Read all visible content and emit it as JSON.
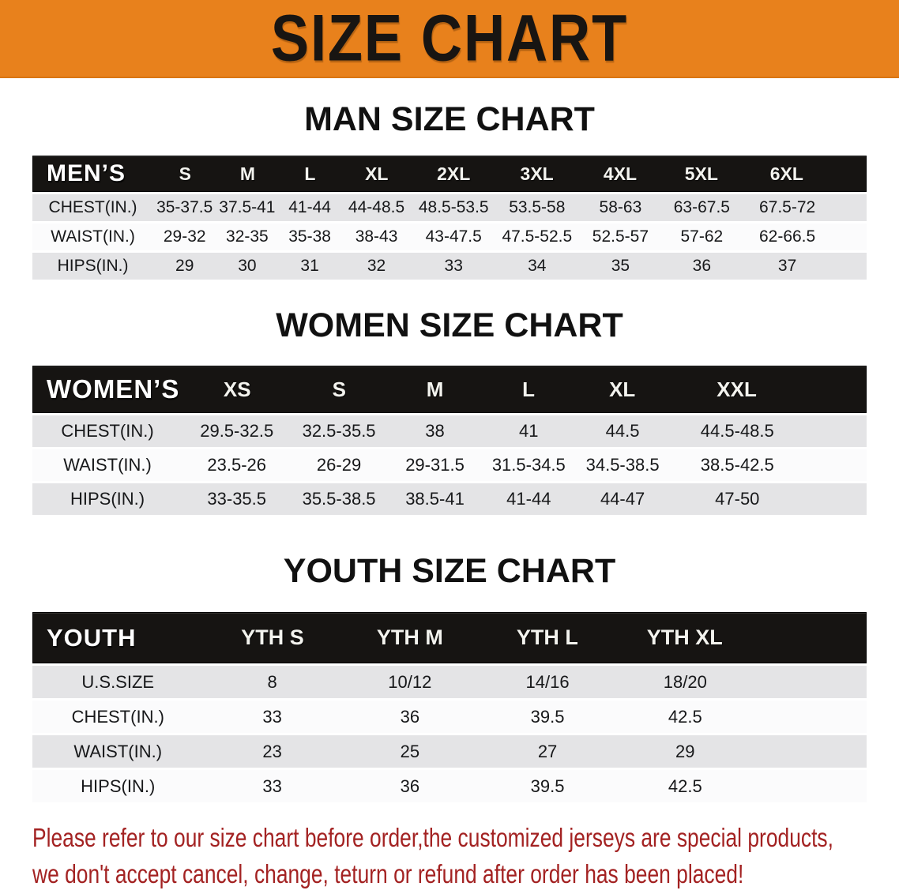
{
  "banner": {
    "title": "SIZE CHART"
  },
  "sections": [
    {
      "heading": "MAN SIZE CHART",
      "table": {
        "header_label": "MEN’S",
        "columns": [
          "S",
          "M",
          "L",
          "XL",
          "2XL",
          "3XL",
          "4XL",
          "5XL",
          "6XL"
        ],
        "rows": [
          {
            "label": "CHEST(IN.)",
            "values": [
              "35-37.5",
              "37.5-41",
              "41-44",
              "44-48.5",
              "48.5-53.5",
              "53.5-58",
              "58-63",
              "63-67.5",
              "67.5-72"
            ]
          },
          {
            "label": "WAIST(IN.)",
            "values": [
              "29-32",
              "32-35",
              "35-38",
              "38-43",
              "43-47.5",
              "47.5-52.5",
              "52.5-57",
              "57-62",
              "62-66.5"
            ]
          },
          {
            "label": "HIPS(IN.)",
            "values": [
              "29",
              "30",
              "31",
              "32",
              "33",
              "34",
              "35",
              "36",
              "37"
            ]
          }
        ]
      }
    },
    {
      "heading": "WOMEN SIZE CHART",
      "table": {
        "header_label": "WOMEN’S",
        "columns": [
          "XS",
          "S",
          "M",
          "L",
          "XL",
          "XXL"
        ],
        "rows": [
          {
            "label": "CHEST(IN.)",
            "values": [
              "29.5-32.5",
              "32.5-35.5",
              "38",
              "41",
              "44.5",
              "44.5-48.5"
            ]
          },
          {
            "label": "WAIST(IN.)",
            "values": [
              "23.5-26",
              "26-29",
              "29-31.5",
              "31.5-34.5",
              "34.5-38.5",
              "38.5-42.5"
            ]
          },
          {
            "label": "HIPS(IN.)",
            "values": [
              "33-35.5",
              "35.5-38.5",
              "38.5-41",
              "41-44",
              "44-47",
              "47-50"
            ]
          }
        ]
      }
    },
    {
      "heading": "YOUTH SIZE CHART",
      "table": {
        "header_label": "YOUTH",
        "columns": [
          "YTH S",
          "YTH M",
          "YTH L",
          "YTH XL"
        ],
        "rows": [
          {
            "label": "U.S.SIZE",
            "values": [
              "8",
              "10/12",
              "14/16",
              "18/20"
            ]
          },
          {
            "label": "CHEST(IN.)",
            "values": [
              "33",
              "36",
              "39.5",
              "42.5"
            ]
          },
          {
            "label": "WAIST(IN.)",
            "values": [
              "23",
              "25",
              "27",
              "29"
            ]
          },
          {
            "label": "HIPS(IN.)",
            "values": [
              "33",
              "36",
              "39.5",
              "42.5"
            ]
          }
        ]
      }
    }
  ],
  "footer": {
    "line1": "Please refer to our size chart before order,the customized jerseys are special products,",
    "line2": "we don't accept cancel, change, teturn or refund after order has been placed!"
  },
  "colors": {
    "banner_orange": "#E8811C",
    "header_bar_black": "#161412",
    "stripe_gray": "#E4E4E6",
    "notice_red": "#A32222"
  }
}
